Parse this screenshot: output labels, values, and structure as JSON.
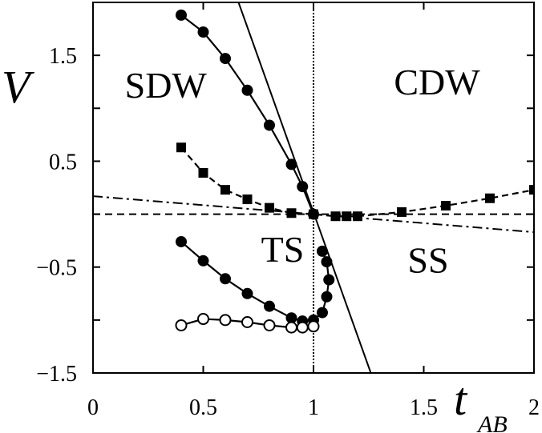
{
  "chart_data": {
    "type": "line",
    "title": "",
    "xlabel": "t",
    "xlabel_subscript": "AB",
    "ylabel": "V",
    "xlim": [
      0,
      2
    ],
    "ylim": [
      -1.5,
      2
    ],
    "x_ticks": [
      0,
      0.5,
      1,
      1.5,
      2
    ],
    "x_tick_labels": [
      "0",
      "0.5",
      "1",
      "1.5",
      "2"
    ],
    "y_ticks": [
      -1.5,
      -0.5,
      0.5,
      1.5
    ],
    "y_tick_labels": [
      "−1.5",
      "−0.5",
      "0.5",
      "1.5"
    ],
    "grid": false,
    "legend": "none",
    "region_labels": [
      {
        "text": "SDW",
        "x": 0.33,
        "y": 1.1
      },
      {
        "text": "CDW",
        "x": 1.56,
        "y": 1.13
      },
      {
        "text": "TS",
        "x": 0.86,
        "y": -0.45
      },
      {
        "text": "SS",
        "x": 1.52,
        "y": -0.55
      }
    ],
    "series": [
      {
        "marker": "filled-circle",
        "line": "solid",
        "x": [
          0.4,
          0.5,
          0.6,
          0.7,
          0.8,
          0.9,
          0.95,
          1.0
        ],
        "y": [
          1.88,
          1.72,
          1.47,
          1.17,
          0.84,
          0.47,
          0.26,
          0.0
        ]
      },
      {
        "marker": "filled-square",
        "line": "dashed",
        "x": [
          0.4,
          0.5,
          0.6,
          0.7,
          0.8,
          0.9,
          1.0,
          1.1,
          1.15,
          1.2,
          1.4,
          1.6,
          1.8,
          2.0
        ],
        "y": [
          0.63,
          0.39,
          0.23,
          0.14,
          0.06,
          0.01,
          0.0,
          -0.02,
          -0.02,
          -0.02,
          0.02,
          0.08,
          0.15,
          0.23
        ]
      },
      {
        "marker": "filled-circle",
        "line": "solid",
        "x": [
          0.4,
          0.5,
          0.6,
          0.7,
          0.8,
          0.9,
          0.95,
          1.0,
          1.04,
          1.06,
          1.07,
          1.06,
          1.04
        ],
        "y": [
          -0.26,
          -0.44,
          -0.61,
          -0.75,
          -0.87,
          -0.98,
          -1.01,
          -1.0,
          -0.93,
          -0.78,
          -0.62,
          -0.45,
          -0.35
        ]
      },
      {
        "marker": "open-circle",
        "line": "solid",
        "x": [
          0.4,
          0.5,
          0.6,
          0.7,
          0.8,
          0.9,
          0.95,
          1.0
        ],
        "y": [
          -1.05,
          -0.99,
          -1.0,
          -1.02,
          -1.05,
          -1.07,
          -1.07,
          -1.06
        ]
      }
    ],
    "reference_lines": [
      {
        "style": "solid",
        "x": [
          0.66,
          1.26
        ],
        "y": [
          2.0,
          -1.5
        ]
      },
      {
        "style": "dashed",
        "x": [
          0.0,
          2.0
        ],
        "y": [
          0.0,
          0.0
        ]
      },
      {
        "style": "dash-dot",
        "x": [
          0.0,
          2.0
        ],
        "y": [
          0.17,
          -0.17
        ]
      },
      {
        "style": "dotted",
        "x": [
          1.0,
          1.0
        ],
        "y": [
          -1.5,
          2.0
        ]
      }
    ]
  }
}
